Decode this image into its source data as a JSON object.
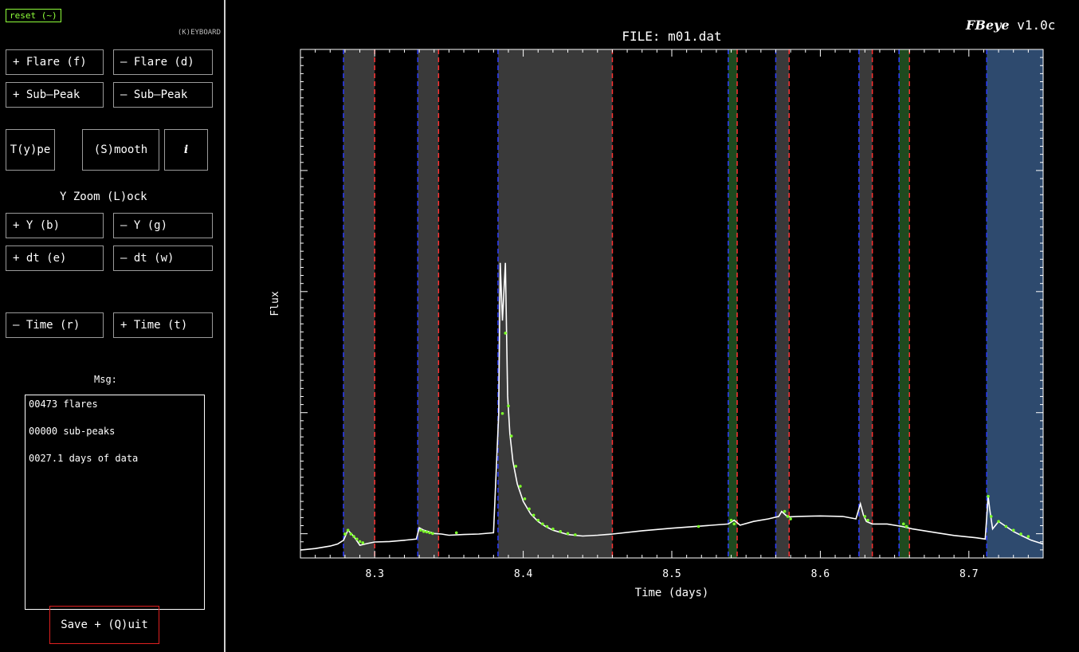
{
  "sidebar": {
    "reset_label": "reset (~)",
    "keyboard_label": "(K)EYBOARD",
    "flare_add": "+ Flare (f)",
    "flare_remove": "– Flare (d)",
    "subpeak_add": "+ Sub–Peak",
    "subpeak_remove": "– Sub–Peak",
    "type_label": "T(y)pe",
    "smooth_label": "(S)mooth",
    "info_label": "i",
    "yzoom_lock_label": "Y Zoom (L)ock",
    "y_add": "+ Y (b)",
    "y_remove": "– Y (g)",
    "dt_add": "+ dt (e)",
    "dt_remove": "– dt (w)",
    "time_back": "– Time (r)",
    "time_fwd": "+ Time (t)",
    "msg_label": "Msg:",
    "messages": [
      "00473  flares",
      "00000 sub-peaks",
      "0027.1 days of data"
    ],
    "quit_label": "Save + (Q)uit"
  },
  "app": {
    "brand": "FBeye",
    "version": "v1.0c"
  },
  "chart_data": {
    "type": "line",
    "title": "FILE: m01.dat",
    "xlabel": "Time (days)",
    "ylabel": "Flux",
    "xlim": [
      8.25,
      8.75
    ],
    "ylim": [
      0,
      1
    ],
    "x_ticks": [
      8.3,
      8.4,
      8.5,
      8.6,
      8.7
    ],
    "x_tick_labels": [
      "8.3",
      "8.4",
      "8.5",
      "8.6",
      "8.7"
    ],
    "colors": {
      "flare_region": "#3a3a3a",
      "selected_region": "#2e4a6e",
      "subpeak_region": "#1f4a1f",
      "start_line": "#2b3cff",
      "end_line": "#ff3030",
      "lightcurve": "#ffffff",
      "flare_points": "#7cff2a"
    },
    "regions": [
      {
        "type": "flare",
        "start": 8.279,
        "end": 8.3
      },
      {
        "type": "flare",
        "start": 8.329,
        "end": 8.343
      },
      {
        "type": "flare",
        "start": 8.383,
        "end": 8.46
      },
      {
        "type": "subpeak",
        "start": 8.538,
        "end": 8.544
      },
      {
        "type": "flare",
        "start": 8.57,
        "end": 8.579
      },
      {
        "type": "flare",
        "start": 8.626,
        "end": 8.635
      },
      {
        "type": "subpeak",
        "start": 8.653,
        "end": 8.66
      },
      {
        "type": "selected",
        "start": 8.712,
        "end": 8.75
      }
    ],
    "series": [
      {
        "style": "line",
        "x": [
          8.25,
          8.26,
          8.27,
          8.275,
          8.279,
          8.282,
          8.286,
          8.29,
          8.295,
          8.3,
          8.31,
          8.32,
          8.328,
          8.33,
          8.333,
          8.336,
          8.34,
          8.345,
          8.35,
          8.36,
          8.37,
          8.38,
          8.3835,
          8.3845,
          8.386,
          8.388,
          8.3895,
          8.391,
          8.393,
          8.396,
          8.4,
          8.405,
          8.41,
          8.415,
          8.42,
          8.43,
          8.44,
          8.45,
          8.46,
          8.48,
          8.5,
          8.52,
          8.538,
          8.542,
          8.546,
          8.555,
          8.565,
          8.572,
          8.574,
          8.578,
          8.585,
          8.6,
          8.615,
          8.624,
          8.627,
          8.629,
          8.631,
          8.635,
          8.645,
          8.655,
          8.662,
          8.675,
          8.69,
          8.705,
          8.711,
          8.713,
          8.714,
          8.716,
          8.72,
          8.725,
          8.73,
          8.735,
          8.742,
          8.75
        ],
        "y": [
          0.006,
          0.012,
          0.022,
          0.03,
          0.045,
          0.085,
          0.06,
          0.025,
          0.032,
          0.038,
          0.04,
          0.045,
          0.05,
          0.095,
          0.085,
          0.08,
          0.072,
          0.07,
          0.065,
          0.068,
          0.07,
          0.075,
          0.55,
          1.15,
          0.92,
          1.15,
          0.62,
          0.47,
          0.36,
          0.27,
          0.2,
          0.15,
          0.12,
          0.1,
          0.085,
          0.068,
          0.062,
          0.065,
          0.07,
          0.083,
          0.093,
          0.102,
          0.11,
          0.125,
          0.105,
          0.12,
          0.13,
          0.14,
          0.16,
          0.138,
          0.14,
          0.142,
          0.14,
          0.13,
          0.19,
          0.145,
          0.12,
          0.11,
          0.11,
          0.1,
          0.09,
          0.078,
          0.064,
          0.055,
          0.05,
          0.22,
          0.17,
          0.09,
          0.12,
          0.1,
          0.08,
          0.065,
          0.045,
          0.03
        ]
      },
      {
        "style": "points",
        "x": [
          8.28,
          8.282,
          8.284,
          8.286,
          8.288,
          8.29,
          8.292,
          8.331,
          8.333,
          8.335,
          8.337,
          8.339,
          8.355,
          8.386,
          8.388,
          8.39,
          8.392,
          8.395,
          8.398,
          8.401,
          8.404,
          8.407,
          8.41,
          8.413,
          8.416,
          8.42,
          8.425,
          8.43,
          8.435,
          8.518,
          8.54,
          8.542,
          8.576,
          8.578,
          8.58,
          8.63,
          8.632,
          8.656,
          8.658,
          8.713,
          8.715,
          8.72,
          8.725,
          8.73,
          8.735,
          8.74
        ],
        "y": [
          0.07,
          0.085,
          0.07,
          0.06,
          0.05,
          0.04,
          0.035,
          0.085,
          0.08,
          0.078,
          0.075,
          0.072,
          0.075,
          0.55,
          0.87,
          0.58,
          0.46,
          0.34,
          0.26,
          0.21,
          0.17,
          0.145,
          0.125,
          0.11,
          0.1,
          0.09,
          0.08,
          0.072,
          0.067,
          0.1,
          0.125,
          0.11,
          0.16,
          0.14,
          0.13,
          0.14,
          0.125,
          0.11,
          0.1,
          0.22,
          0.14,
          0.12,
          0.1,
          0.085,
          0.07,
          0.06
        ]
      }
    ]
  }
}
